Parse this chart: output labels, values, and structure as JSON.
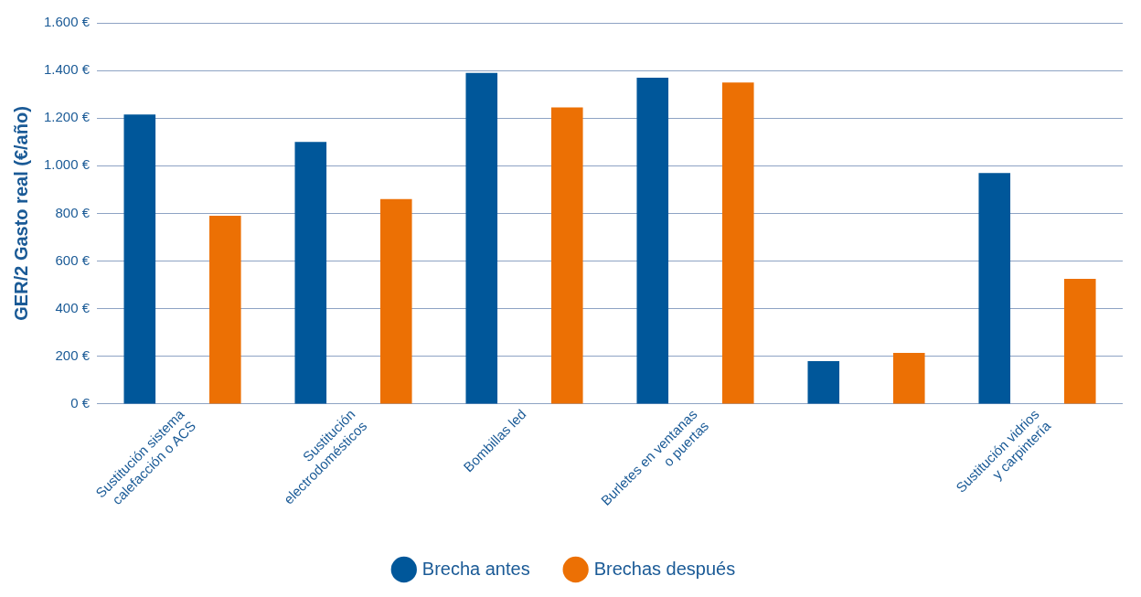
{
  "chart_data": {
    "type": "bar",
    "ylabel": "GER/2 Gasto real (€/año)",
    "categories": [
      "Sustitución sistema\ncalefacción o ACS",
      "Sustitución\nelectrodomésticos",
      "Bombillas led",
      "Burletes en ventanas\no puertas",
      null,
      "Sustitución vidrios\ny carpintería"
    ],
    "series": [
      {
        "name": "Brecha antes",
        "color": "#00579a",
        "values": [
          1215,
          1100,
          1390,
          1370,
          180,
          970
        ]
      },
      {
        "name": "Brechas después",
        "color": "#ec7004",
        "values": [
          790,
          860,
          1245,
          1350,
          215,
          525
        ]
      }
    ],
    "ylim": [
      0,
      1600
    ],
    "yticks": [
      {
        "value": 0,
        "label": "0 €"
      },
      {
        "value": 200,
        "label": "200 €"
      },
      {
        "value": 400,
        "label": "400 €"
      },
      {
        "value": 600,
        "label": "600 €"
      },
      {
        "value": 800,
        "label": "800 €"
      },
      {
        "value": 1000,
        "label": "1.000 €"
      },
      {
        "value": 1200,
        "label": "1.200 €"
      },
      {
        "value": 1400,
        "label": "1.400 €"
      },
      {
        "value": 1600,
        "label": "1.600 €"
      }
    ],
    "grid": "y",
    "legend": "bottom"
  }
}
